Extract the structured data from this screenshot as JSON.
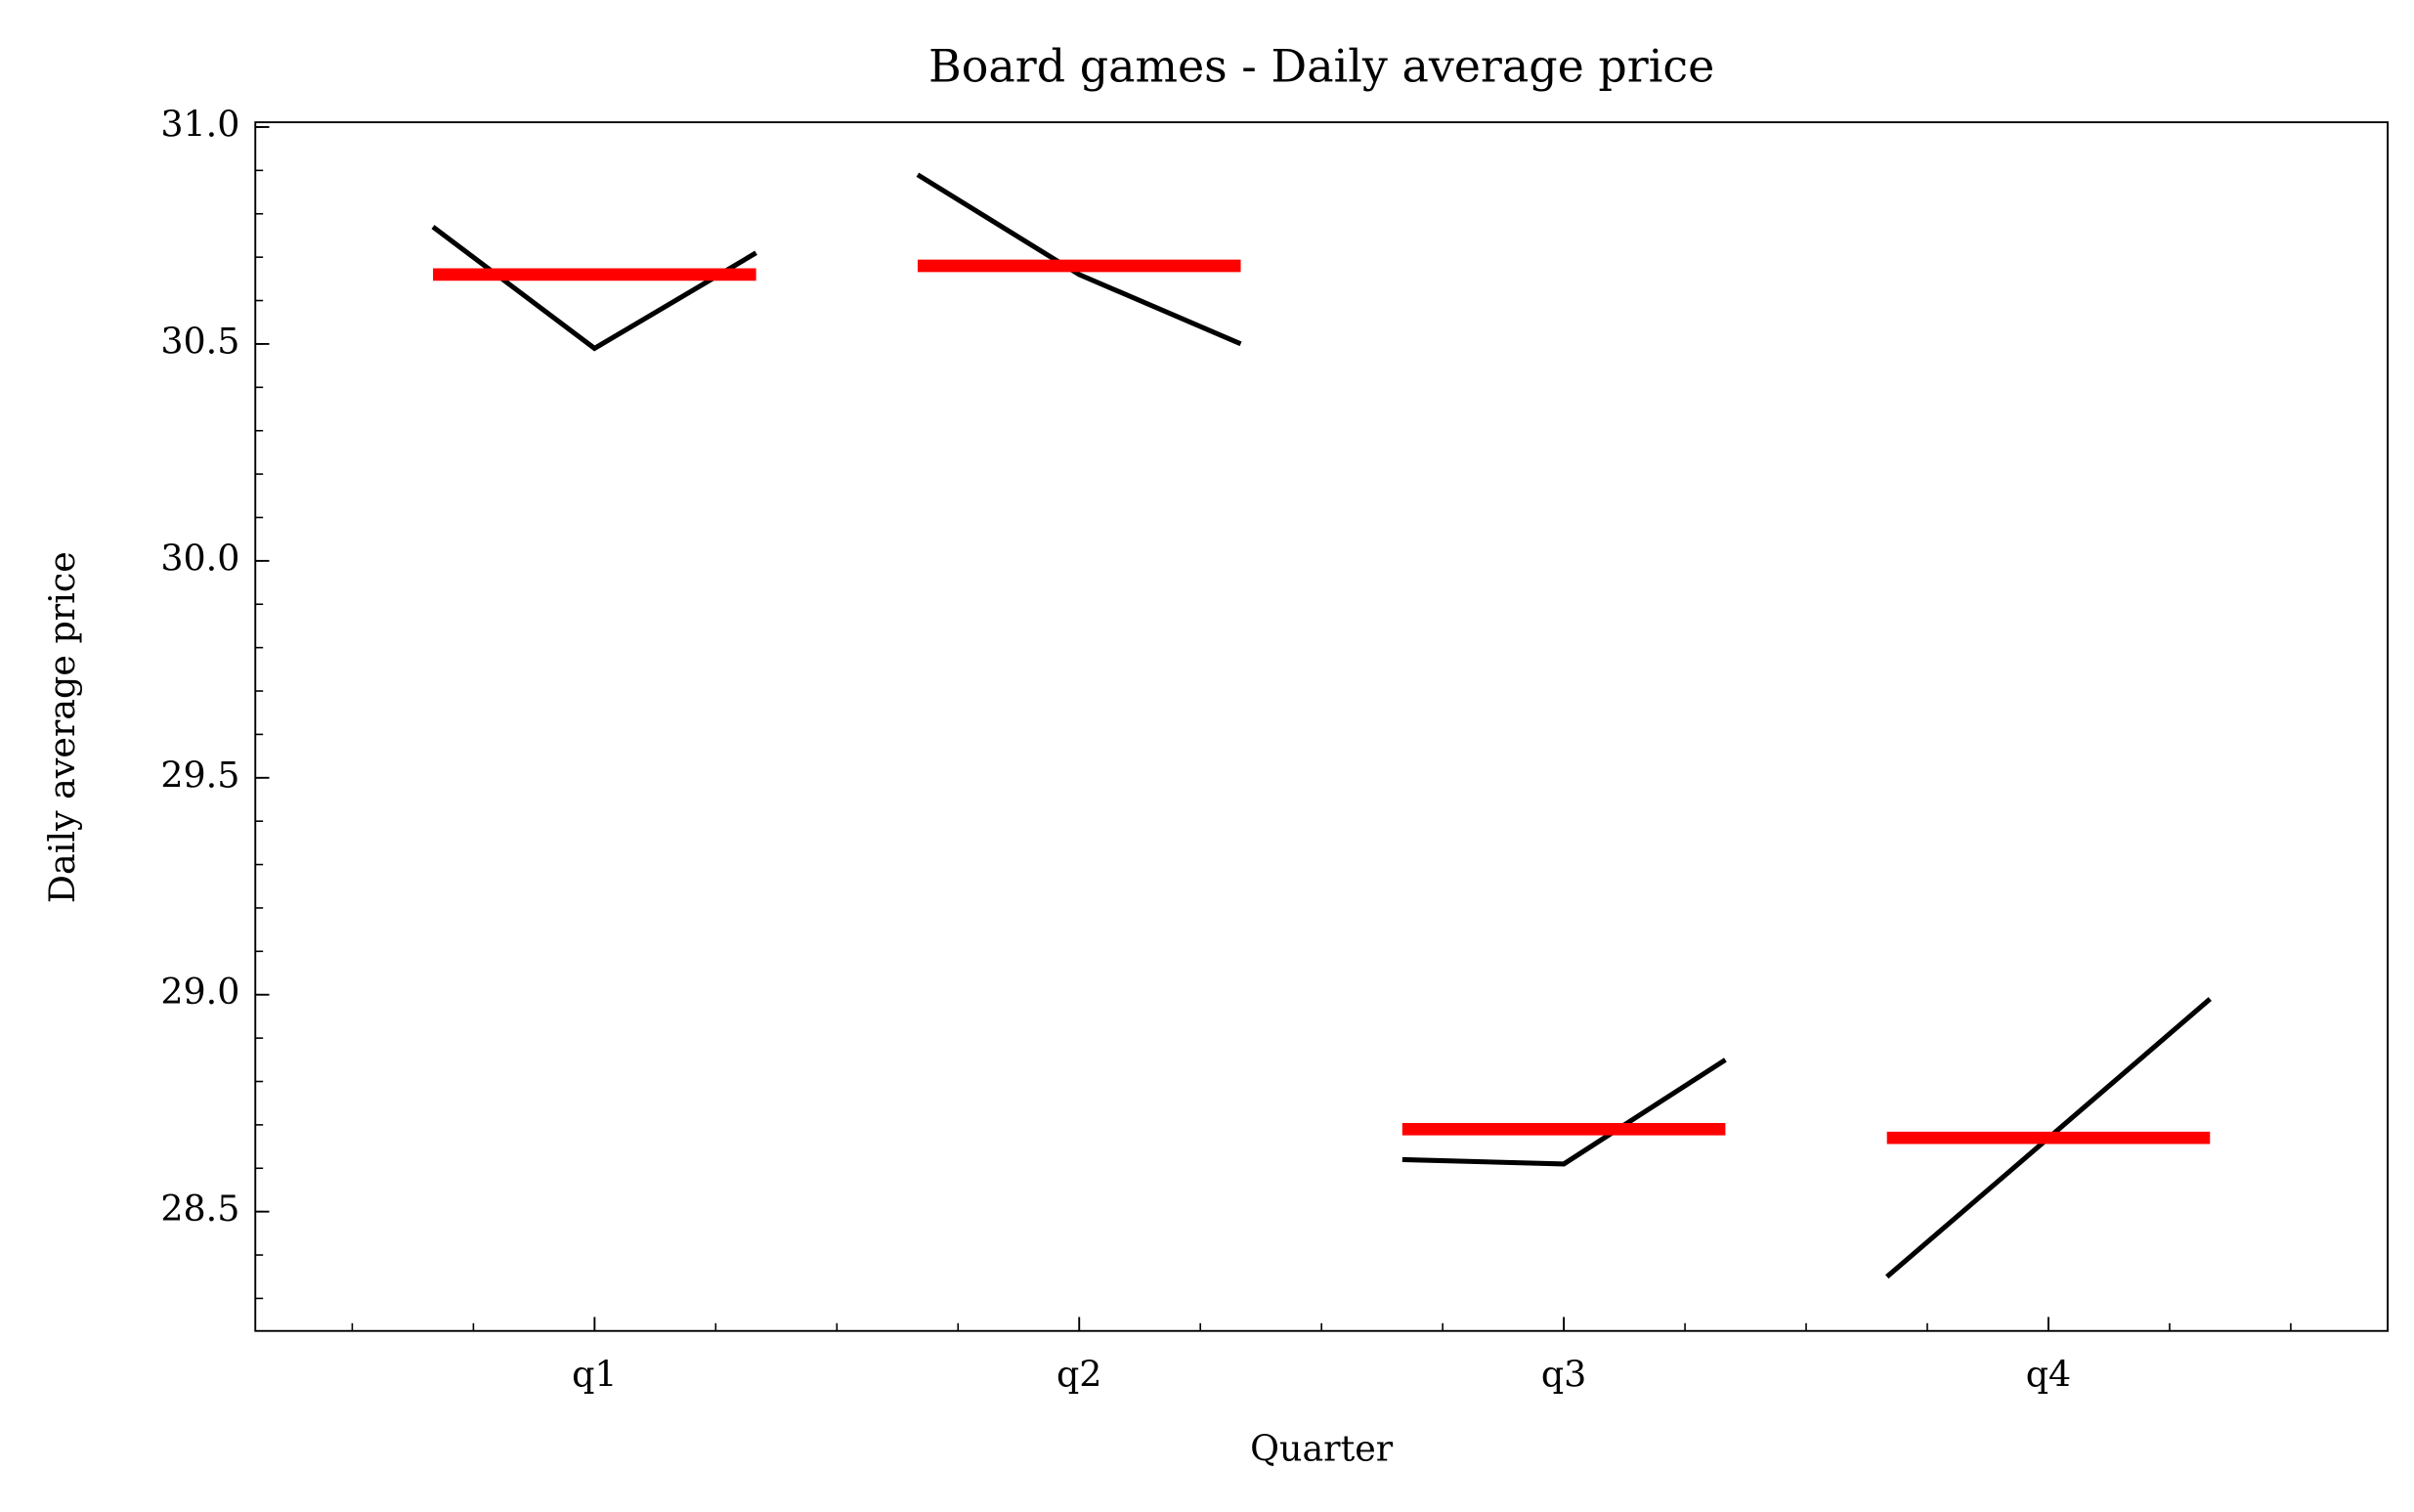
{
  "chart_data": {
    "type": "quarter",
    "title": "Board games - Daily average price",
    "xlabel": "Quarter",
    "ylabel": "Daily average price",
    "categories": [
      "q1",
      "q2",
      "q3",
      "q4"
    ],
    "groups": [
      {
        "values": [
          30.77,
          30.49,
          30.71
        ],
        "mean": 30.66
      },
      {
        "values": [
          30.89,
          30.66,
          30.5
        ],
        "mean": 30.68
      },
      {
        "values": [
          28.62,
          28.61,
          28.85
        ],
        "mean": 28.69
      },
      {
        "values": [
          28.35,
          28.67,
          28.99
        ],
        "mean": 28.67
      }
    ],
    "line_color": "#000000",
    "mean_color": "#ff0000",
    "ylim": [
      28.225,
      31.011
    ],
    "yticks": [
      28.5,
      {
        "value": 29,
        "label": "29.0"
      },
      29.5,
      {
        "value": 30,
        "label": "30.0"
      },
      30.5,
      {
        "value": 31,
        "label": "31.0"
      }
    ]
  }
}
